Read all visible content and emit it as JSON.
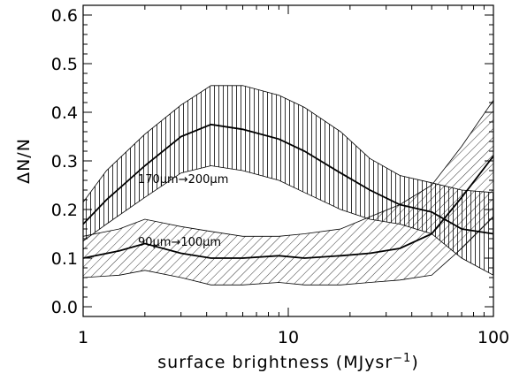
{
  "chart_data": {
    "type": "line",
    "xlabel": "surface brightness (MJysr",
    "xlabel_sup": "−1",
    "xlabel_close": ")",
    "ylabel": "ΔN/N",
    "xscale": "log",
    "xlim": [
      1,
      100
    ],
    "ylim": [
      -0.02,
      0.62
    ],
    "x_ticks": [
      1,
      10,
      100
    ],
    "x_tick_labels": [
      "1",
      "10",
      "100"
    ],
    "y_ticks": [
      0.0,
      0.1,
      0.2,
      0.3,
      0.4,
      0.5,
      0.6
    ],
    "y_tick_labels": [
      "0.0",
      "0.1",
      "0.2",
      "0.3",
      "0.4",
      "0.5",
      "0.6"
    ],
    "grid": false,
    "annotations": [
      {
        "text": "170μm→200μm",
        "series": 0
      },
      {
        "text": "90μm→100μm",
        "series": 1
      }
    ],
    "series": [
      {
        "hatch": "vertical",
        "x": [
          1,
          1.3,
          2,
          3,
          4.2,
          6,
          9,
          12,
          18,
          25,
          35,
          50,
          70,
          100
        ],
        "y": [
          0.17,
          0.22,
          0.29,
          0.35,
          0.375,
          0.365,
          0.345,
          0.32,
          0.275,
          0.24,
          0.21,
          0.195,
          0.16,
          0.15
        ],
        "upper": [
          0.215,
          0.28,
          0.355,
          0.415,
          0.455,
          0.455,
          0.435,
          0.41,
          0.36,
          0.305,
          0.27,
          0.255,
          0.24,
          0.235
        ],
        "lower": [
          0.135,
          0.17,
          0.225,
          0.275,
          0.29,
          0.28,
          0.26,
          0.235,
          0.2,
          0.18,
          0.17,
          0.15,
          0.1,
          0.065
        ]
      },
      {
        "hatch": "diagonal",
        "x": [
          1,
          1.5,
          2,
          3,
          4.2,
          6,
          9,
          12,
          18,
          25,
          35,
          50,
          70,
          100
        ],
        "y": [
          0.1,
          0.115,
          0.13,
          0.11,
          0.1,
          0.1,
          0.105,
          0.1,
          0.105,
          0.11,
          0.12,
          0.15,
          0.225,
          0.31
        ],
        "upper": [
          0.145,
          0.16,
          0.18,
          0.165,
          0.155,
          0.145,
          0.145,
          0.15,
          0.16,
          0.185,
          0.21,
          0.25,
          0.33,
          0.425
        ],
        "lower": [
          0.06,
          0.065,
          0.075,
          0.06,
          0.045,
          0.045,
          0.05,
          0.045,
          0.045,
          0.05,
          0.055,
          0.065,
          0.12,
          0.185
        ]
      }
    ]
  }
}
